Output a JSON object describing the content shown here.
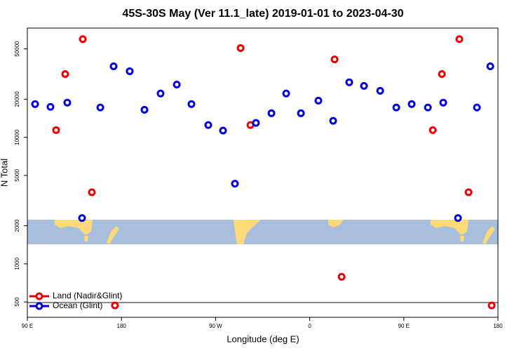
{
  "chart_data": {
    "type": "scatter",
    "title": "45S-30S May (Ver 11.1_late)   2019-01-01 to 2023-04-30",
    "x_label": "Longitude (deg E)",
    "y_label": "N Total",
    "log_y": true,
    "xlim": [
      90,
      540
    ],
    "xticks": [
      {
        "value": 90,
        "label": "90 E"
      },
      {
        "value": 180,
        "label": "180"
      },
      {
        "value": 270,
        "label": "90 W"
      },
      {
        "value": 360,
        "label": "0"
      },
      {
        "value": 450,
        "label": "90 E"
      },
      {
        "value": 540,
        "label": "180"
      }
    ],
    "ylim": [
      378,
      73000
    ],
    "yticks": [
      500,
      1000,
      2000,
      5000,
      10000,
      20000,
      50000
    ],
    "legend": "bottom-left",
    "series": [
      {
        "name": "Land (Nadir&Glint)",
        "color": "#ee0000",
        "x": [
          117.5,
          126.2,
          143,
          151.7,
          173.8,
          293.9,
          303.3,
          383.8,
          390.5,
          477.7,
          486.4,
          503.1,
          511.9,
          534
        ],
        "values": [
          11400,
          31600,
          59700,
          3680,
          469,
          50700,
          12500,
          41300,
          790,
          11400,
          31600,
          59700,
          3680,
          469
        ]
      },
      {
        "name": "Ocean (Glint)",
        "color": "#0000dd",
        "x": [
          97.4,
          112.1,
          128.2,
          142.3,
          159.8,
          172.5,
          187.9,
          202,
          217.4,
          232.9,
          246.9,
          263,
          277.1,
          288.5,
          308.6,
          323.4,
          337.5,
          351.6,
          368.3,
          382.4,
          397.8,
          411.9,
          427.4,
          442.8,
          457.5,
          473,
          487.7,
          501.8,
          519.9,
          532.7
        ],
        "values": [
          18300,
          17400,
          18800,
          2300,
          17200,
          36400,
          33300,
          16500,
          22200,
          26100,
          18300,
          12500,
          11300,
          4300,
          13000,
          15500,
          22200,
          15500,
          19500,
          13500,
          27200,
          25500,
          23300,
          17200,
          18300,
          17200,
          18800,
          2300,
          17200,
          36400
        ]
      }
    ]
  }
}
